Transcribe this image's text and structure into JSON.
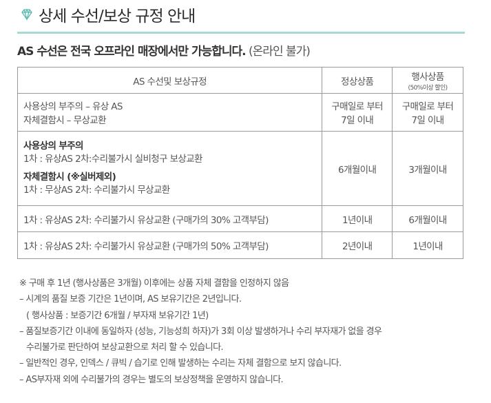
{
  "header": {
    "icon": "diamond-icon",
    "title": "상세 수선/보상 규정 안내",
    "accent_color": "#a8d8d3"
  },
  "notice": {
    "bold": "AS 수선은 전국 오프라인 매장에서만 가능합니다.",
    "sub": "(온라인 불가)"
  },
  "table": {
    "headers": [
      "AS 수선및 보상규정",
      "정상상품",
      "행사상품",
      "(50%이상 할인)"
    ],
    "rows": [
      {
        "lines": [
          "사용상의 부주의 – 유상 AS",
          "자체결함시 – 무상교환"
        ],
        "normal": [
          "구매일로 부터",
          "7일 이내"
        ],
        "event": [
          "구매일로 부터",
          "7일 이내"
        ]
      },
      {
        "title1": "사용상의 부주의",
        "line1": "1차 : 유상AS   2차:수리불가시 실비청구 보상교환",
        "title2": "자체결함시 (※실버제외)",
        "line2": "1차 : 무상AS   2차: 수리불가시 무상교환",
        "normal": "6개월이내",
        "event": "3개월이내"
      },
      {
        "text": "1차 : 유상AS   2차: 수리불가시 유상교환 (구매가의 30% 고객부담)",
        "normal": "1년이내",
        "event": "6개월이내"
      },
      {
        "text": "1차 : 유상AS   2차: 수리불가시 유상교환 (구매가의 50% 고객부담)",
        "normal": "2년이내",
        "event": "1년이내"
      }
    ]
  },
  "notes": [
    "※ 구매 후 1년 (행사상품은 3개월) 이후에는 상품 자체 결함을 인정하지 않음",
    "– 시계의 품질 보증 기간은 1년이며, AS 보유기간은 2년입니다.",
    "( 행사상품 : 보증기간 6개월 / 부자재 보유기간 1년)",
    "– 품질보증기간 이내에 동일하자 (성능, 기능성희 하자)가 3회 이상 발생하거나 수리 부자재가 없을 경우",
    "수리불가로 판단하여 보상교환으로 처리 할 수 있습니다.",
    "– 일반적인 경우, 인덱스 / 큐빅 / 습기로 인해 발생하는 수리는 자체 결함으로 보지 않습니다.",
    "– AS부자재 외에 수리불가의 경우는 별도의 보상정책을 운영하지 않습니다."
  ]
}
